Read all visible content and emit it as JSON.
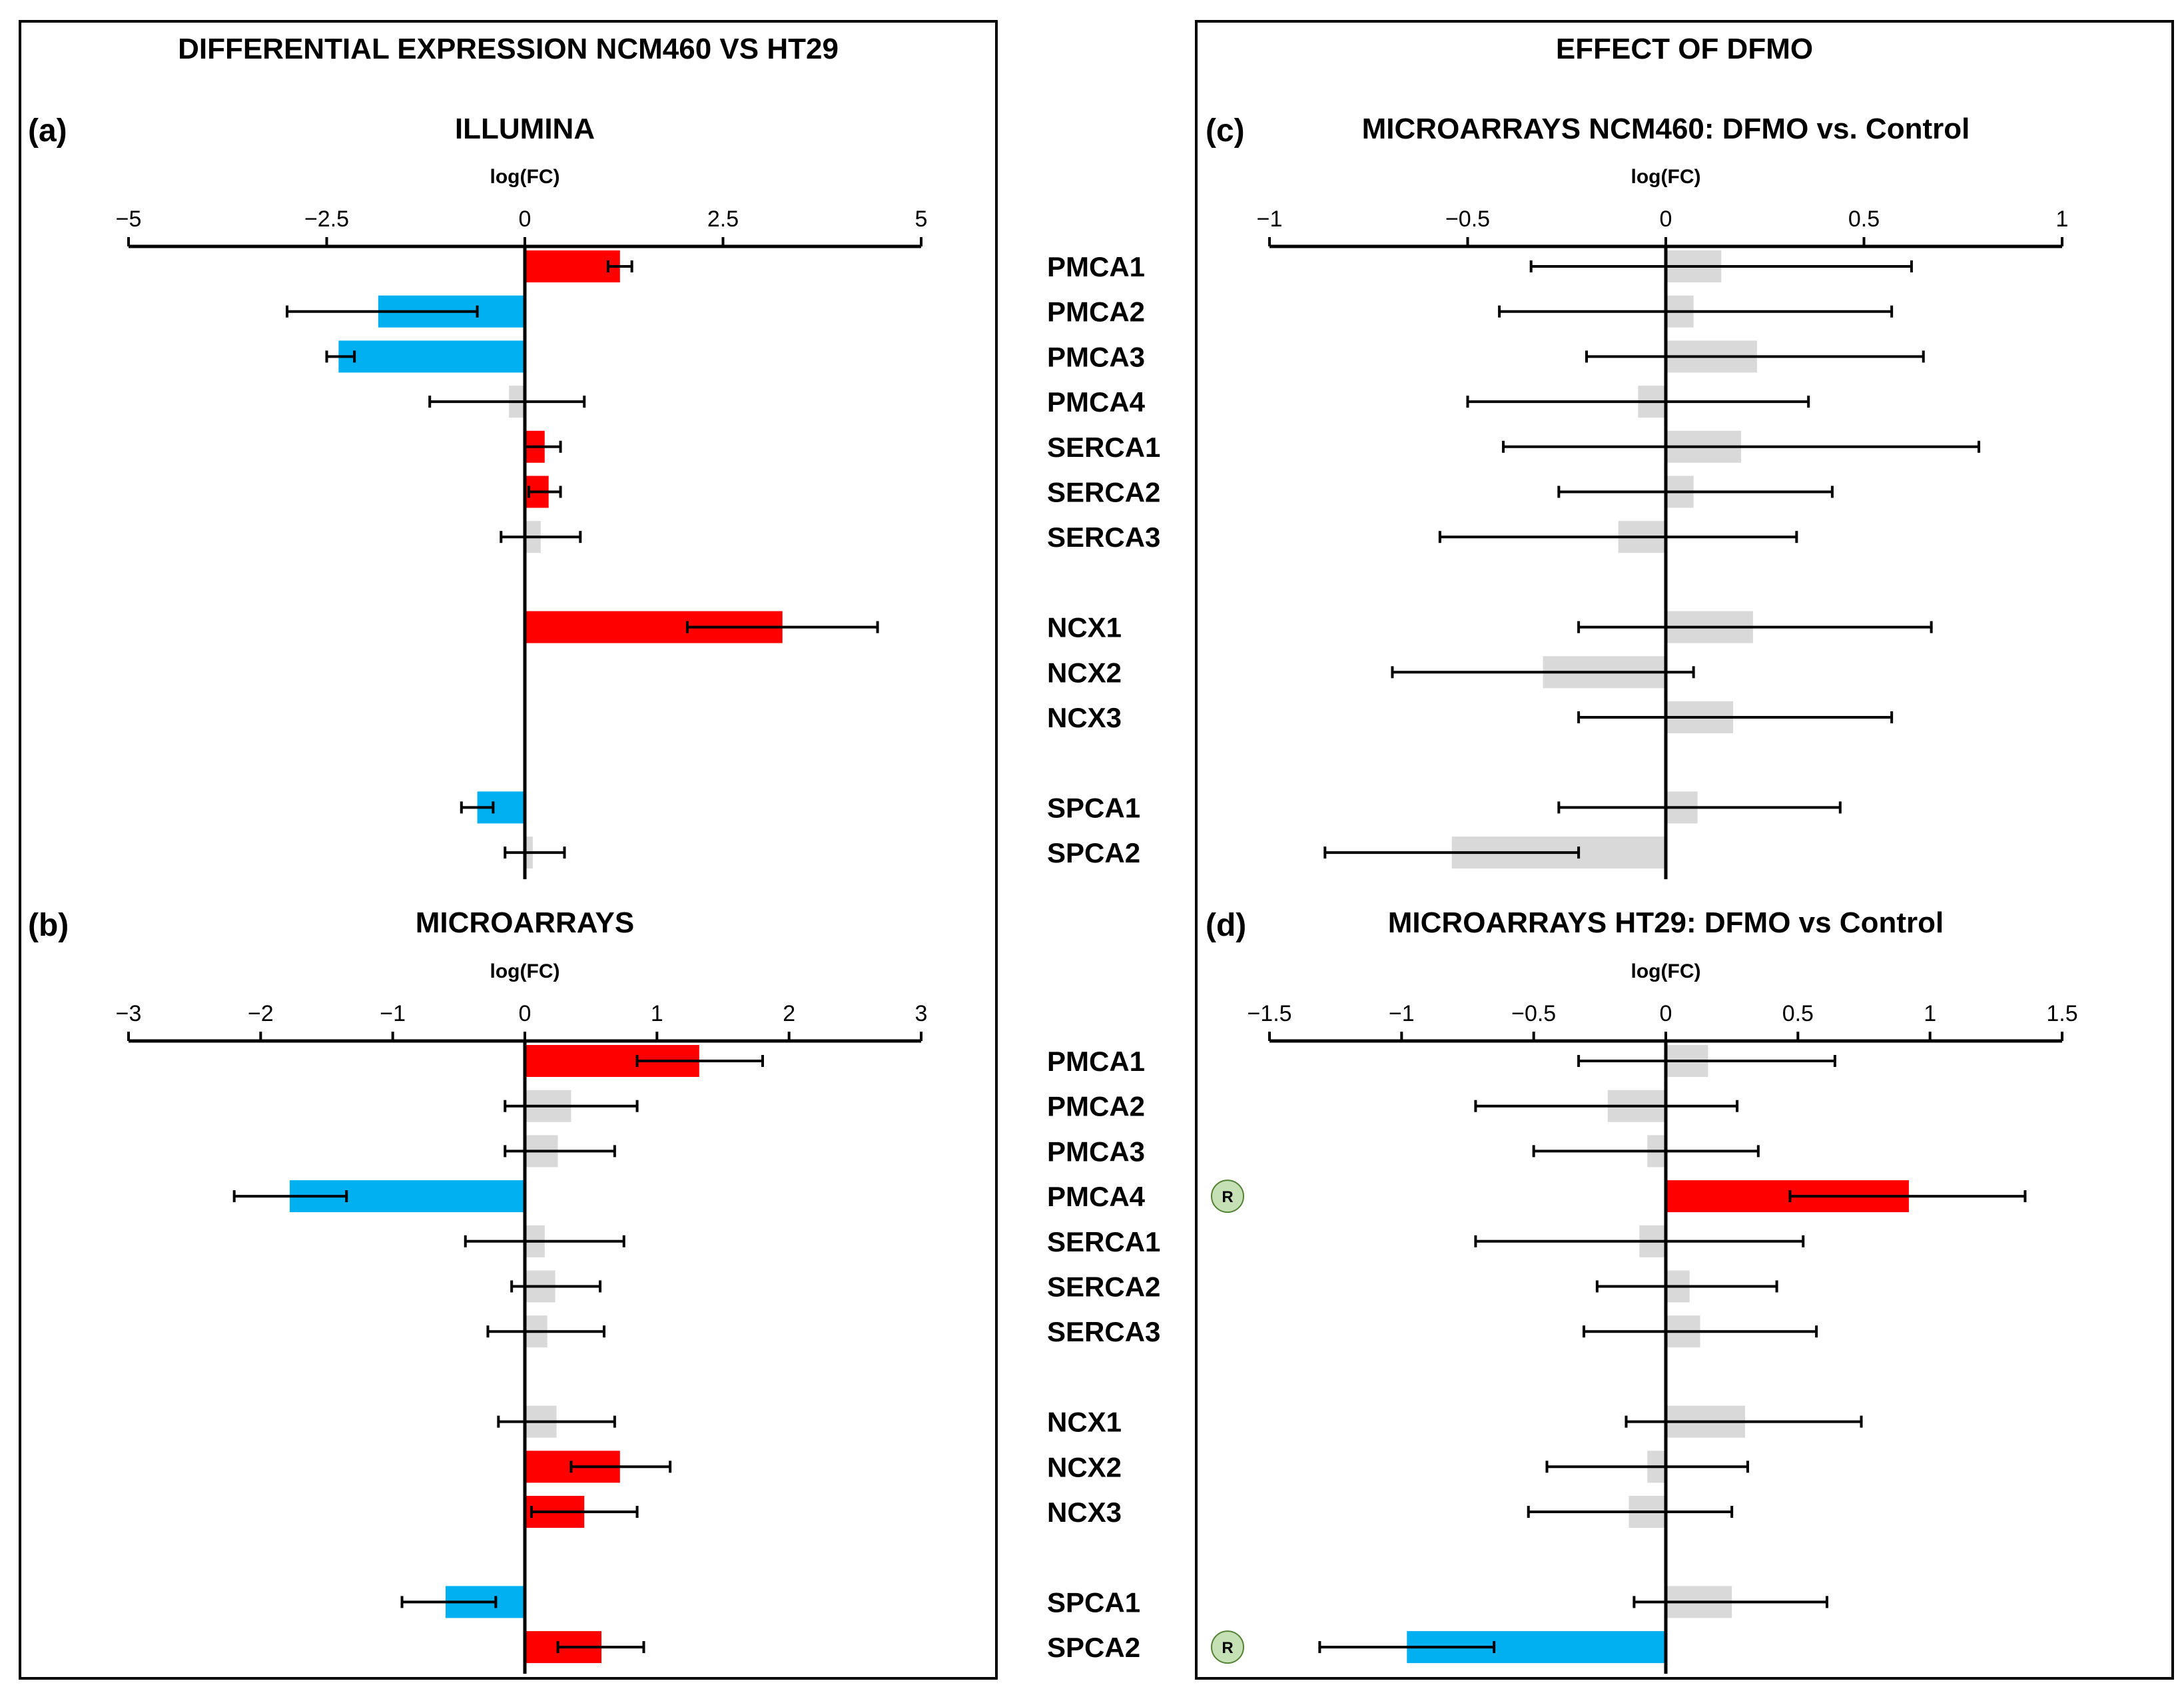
{
  "colors": {
    "up": "#ff0000",
    "down": "#00b0f0",
    "ns": "#d9d9d9",
    "badge": "#c5e0b4",
    "badge_stroke": "#548235"
  },
  "left_group": {
    "title": "DIFFERENTIAL EXPRESSION NCM460 VS HT29"
  },
  "right_group": {
    "title": "EFFECT OF DFMO"
  },
  "chart_data": [
    {
      "type": "bar",
      "orientation": "horizontal",
      "panel": "(a)",
      "title": "ILLUMINA",
      "xlabel": "log(FC)",
      "xlim": [
        -5,
        5
      ],
      "ticks": [
        -5,
        -2.5,
        0,
        2.5,
        5
      ],
      "tick_labels": [
        "−5",
        "−2.5",
        "0",
        "2.5",
        "5"
      ],
      "categories": [
        "PMCA1",
        "PMCA2",
        "PMCA3",
        "PMCA4",
        "SERCA1",
        "SERCA2",
        "SERCA3",
        "NCX1",
        "NCX2",
        "NCX3",
        "SPCA1",
        "SPCA2"
      ],
      "show_category_labels": false,
      "values": [
        1.2,
        -1.85,
        -2.35,
        -0.2,
        0.25,
        0.3,
        0.2,
        3.25,
        null,
        null,
        -0.6,
        0.1
      ],
      "err_low": [
        1.05,
        -3.0,
        -2.5,
        -1.2,
        0.0,
        0.05,
        -0.3,
        2.05,
        null,
        null,
        -0.8,
        -0.25
      ],
      "err_high": [
        1.35,
        -0.6,
        -2.15,
        0.75,
        0.45,
        0.45,
        0.7,
        4.45,
        null,
        null,
        -0.4,
        0.5
      ],
      "status": [
        "up",
        "down",
        "down",
        "ns",
        "up",
        "up",
        "ns",
        "up",
        "ns",
        "ns",
        "down",
        "ns"
      ]
    },
    {
      "type": "bar",
      "orientation": "horizontal",
      "panel": "(b)",
      "title": "MICROARRAYS",
      "xlabel": "log(FC)",
      "xlim": [
        -3,
        3
      ],
      "ticks": [
        -3,
        -2,
        -1,
        0,
        1,
        2,
        3
      ],
      "tick_labels": [
        "−3",
        "−2",
        "−1",
        "0",
        "1",
        "2",
        "3"
      ],
      "categories": [
        "PMCA1",
        "PMCA2",
        "PMCA3",
        "PMCA4",
        "SERCA1",
        "SERCA2",
        "SERCA3",
        "NCX1",
        "NCX2",
        "NCX3",
        "SPCA1",
        "SPCA2"
      ],
      "show_category_labels": false,
      "values": [
        1.32,
        0.35,
        0.25,
        -1.78,
        0.15,
        0.23,
        0.17,
        0.24,
        0.72,
        0.45,
        -0.6,
        0.58
      ],
      "err_low": [
        0.85,
        -0.15,
        -0.15,
        -2.2,
        -0.45,
        -0.1,
        -0.28,
        -0.2,
        0.35,
        0.05,
        -0.93,
        0.25
      ],
      "err_high": [
        1.8,
        0.85,
        0.68,
        -1.35,
        0.75,
        0.57,
        0.6,
        0.68,
        1.1,
        0.85,
        -0.22,
        0.9
      ],
      "status": [
        "up",
        "ns",
        "ns",
        "down",
        "ns",
        "ns",
        "ns",
        "ns",
        "up",
        "up",
        "down",
        "up"
      ]
    },
    {
      "type": "bar",
      "orientation": "horizontal",
      "panel": "(c)",
      "title": "MICROARRAYS NCM460: DFMO vs. Control",
      "xlabel": "log(FC)",
      "xlim": [
        -1,
        1
      ],
      "ticks": [
        -1,
        -0.5,
        0,
        0.5,
        1
      ],
      "tick_labels": [
        "−1",
        "−0.5",
        "0",
        "0.5",
        "1"
      ],
      "categories": [
        "PMCA1",
        "PMCA2",
        "PMCA3",
        "PMCA4",
        "SERCA1",
        "SERCA2",
        "SERCA3",
        "NCX1",
        "NCX2",
        "NCX3",
        "SPCA1",
        "SPCA2"
      ],
      "show_category_labels": true,
      "values": [
        0.14,
        0.07,
        0.23,
        -0.07,
        0.19,
        0.07,
        -0.12,
        0.22,
        -0.31,
        0.17,
        0.08,
        -0.54
      ],
      "err_low": [
        -0.34,
        -0.42,
        -0.2,
        -0.5,
        -0.41,
        -0.27,
        -0.57,
        -0.22,
        -0.69,
        -0.22,
        -0.27,
        -0.86
      ],
      "err_high": [
        0.62,
        0.57,
        0.65,
        0.36,
        0.79,
        0.42,
        0.33,
        0.67,
        0.07,
        0.57,
        0.44,
        -0.22
      ],
      "status": [
        "ns",
        "ns",
        "ns",
        "ns",
        "ns",
        "ns",
        "ns",
        "ns",
        "ns",
        "ns",
        "ns",
        "ns"
      ]
    },
    {
      "type": "bar",
      "orientation": "horizontal",
      "panel": "(d)",
      "title": "MICROARRAYS HT29: DFMO vs Control",
      "xlabel": "log(FC)",
      "xlim": [
        -1.5,
        1.5
      ],
      "ticks": [
        -1.5,
        -1,
        -0.5,
        0,
        0.5,
        1,
        1.5
      ],
      "tick_labels": [
        "−1.5",
        "−1",
        "−0.5",
        "0",
        "0.5",
        "1",
        "1.5"
      ],
      "categories": [
        "PMCA1",
        "PMCA2",
        "PMCA3",
        "PMCA4",
        "SERCA1",
        "SERCA2",
        "SERCA3",
        "NCX1",
        "NCX2",
        "NCX3",
        "SPCA1",
        "SPCA2"
      ],
      "show_category_labels": true,
      "values": [
        0.16,
        -0.22,
        -0.07,
        0.92,
        -0.1,
        0.09,
        0.13,
        0.3,
        -0.07,
        -0.14,
        0.25,
        -0.98
      ],
      "err_low": [
        -0.33,
        -0.72,
        -0.5,
        0.47,
        -0.72,
        -0.26,
        -0.31,
        -0.15,
        -0.45,
        -0.52,
        -0.12,
        -1.31
      ],
      "err_high": [
        0.64,
        0.27,
        0.35,
        1.36,
        0.52,
        0.42,
        0.57,
        0.74,
        0.31,
        0.25,
        0.61,
        -0.65
      ],
      "status": [
        "ns",
        "ns",
        "ns",
        "up",
        "ns",
        "ns",
        "ns",
        "ns",
        "ns",
        "ns",
        "ns",
        "down"
      ],
      "badges": [
        null,
        null,
        null,
        "R",
        null,
        null,
        null,
        null,
        null,
        null,
        null,
        "R"
      ]
    }
  ]
}
